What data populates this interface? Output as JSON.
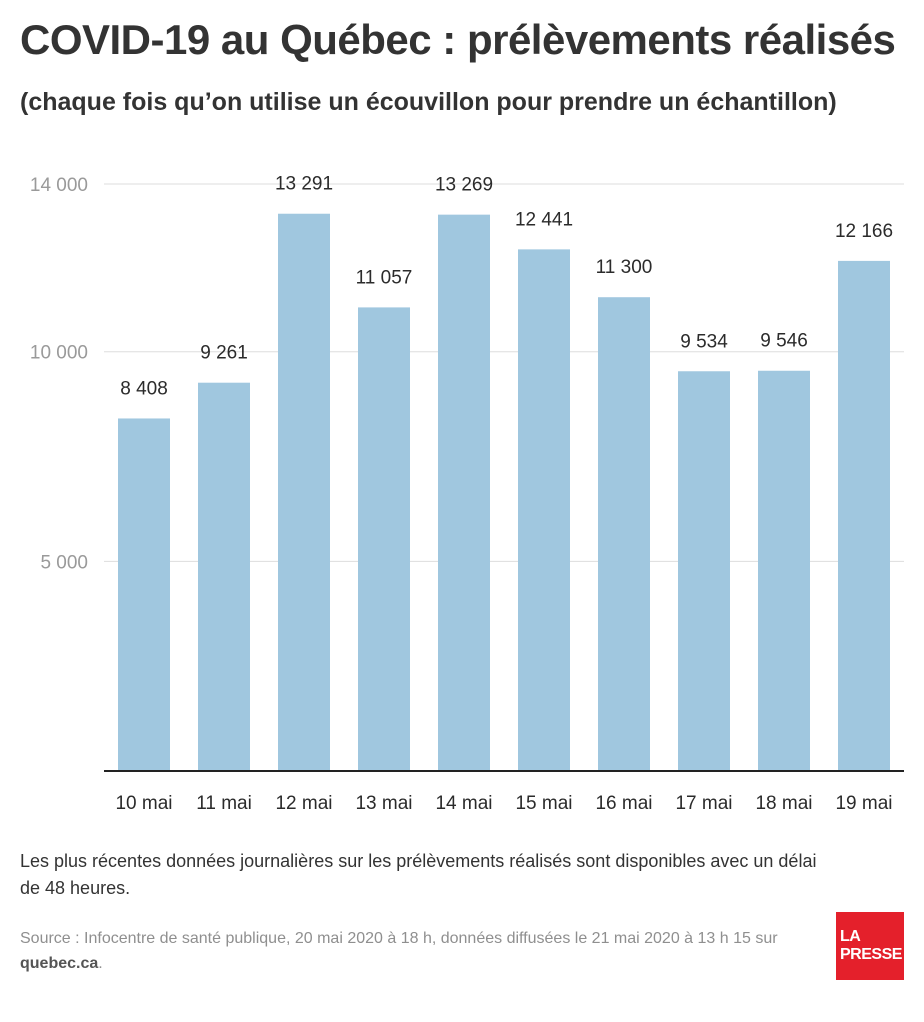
{
  "header": {
    "title": "COVID-19 au Québec : prélèvements réalisés",
    "subtitle": "(chaque fois qu’on utilise un écouvillon pour prendre un échantillon)"
  },
  "chart_data": {
    "type": "bar",
    "categories": [
      "10 mai",
      "11 mai",
      "12 mai",
      "13 mai",
      "14 mai",
      "15 mai",
      "16 mai",
      "17 mai",
      "18 mai",
      "19 mai"
    ],
    "values": [
      8408,
      9261,
      13291,
      11057,
      13269,
      12441,
      11300,
      9534,
      9546,
      12166
    ],
    "value_labels": [
      "8 408",
      "9 261",
      "13 291",
      "11 057",
      "13 269",
      "12 441",
      "11 300",
      "9 534",
      "9 546",
      "12 166"
    ],
    "yticks": [
      5000,
      10000,
      14000
    ],
    "ytick_labels": [
      "5 000",
      "10 000",
      "14 000"
    ],
    "ylim": [
      0,
      14000
    ],
    "grid": true,
    "bar_color": "#a0c7df",
    "grid_color": "#dddddd",
    "axis_color": "#222222"
  },
  "footer": {
    "note": "Les plus récentes données journalières sur les prélèvements réalisés sont disponibles avec un délai de 48 heures.",
    "source_prefix": "Source : Infocentre de santé publique, 20 mai 2020 à 18 h, données diffusées le 21 mai 2020 à 13 h 15 sur ",
    "source_link": "quebec.ca",
    "source_suffix": "."
  },
  "logo": {
    "line1": "LA",
    "line2": "PRESSE"
  }
}
